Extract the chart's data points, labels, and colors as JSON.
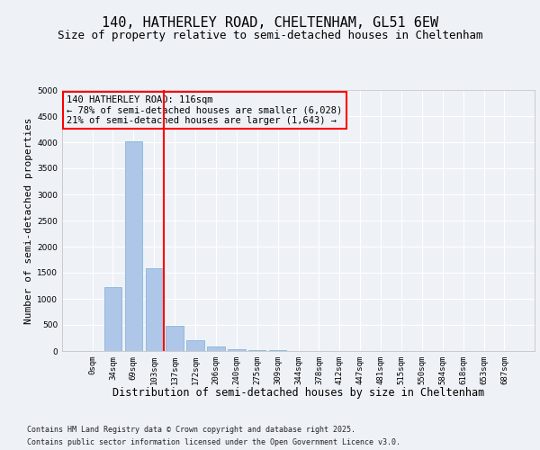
{
  "title": "140, HATHERLEY ROAD, CHELTENHAM, GL51 6EW",
  "subtitle": "Size of property relative to semi-detached houses in Cheltenham",
  "xlabel": "Distribution of semi-detached houses by size in Cheltenham",
  "ylabel": "Number of semi-detached properties",
  "bar_categories": [
    "0sqm",
    "34sqm",
    "69sqm",
    "103sqm",
    "137sqm",
    "172sqm",
    "206sqm",
    "240sqm",
    "275sqm",
    "309sqm",
    "344sqm",
    "378sqm",
    "412sqm",
    "447sqm",
    "481sqm",
    "515sqm",
    "550sqm",
    "584sqm",
    "618sqm",
    "653sqm",
    "687sqm"
  ],
  "bar_values": [
    0,
    1230,
    4020,
    1590,
    490,
    200,
    90,
    40,
    20,
    10,
    5,
    3,
    2,
    1,
    1,
    0,
    0,
    0,
    0,
    0,
    0
  ],
  "bar_color": "#aec6e8",
  "bar_edge_color": "#7bafd4",
  "property_line_x": 3.45,
  "property_line_color": "red",
  "annotation_text": "140 HATHERLEY ROAD: 116sqm\n← 78% of semi-detached houses are smaller (6,028)\n21% of semi-detached houses are larger (1,643) →",
  "annotation_box_color": "red",
  "ylim": [
    0,
    5000
  ],
  "yticks": [
    0,
    500,
    1000,
    1500,
    2000,
    2500,
    3000,
    3500,
    4000,
    4500,
    5000
  ],
  "footer_line1": "Contains HM Land Registry data © Crown copyright and database right 2025.",
  "footer_line2": "Contains public sector information licensed under the Open Government Licence v3.0.",
  "background_color": "#eef2f7",
  "grid_color": "#ffffff",
  "title_fontsize": 11,
  "subtitle_fontsize": 9,
  "axis_label_fontsize": 8,
  "tick_fontsize": 6.5,
  "annotation_fontsize": 7.5,
  "footer_fontsize": 6
}
